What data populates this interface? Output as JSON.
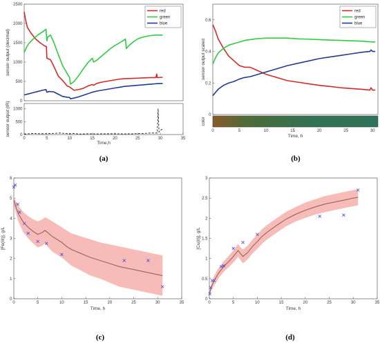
{
  "chart_data": [
    {
      "id": "a",
      "panel_label": "(a)",
      "type": "line",
      "ylabel": "sensor output (decimal)",
      "xlabel": "Time,h",
      "xlim": [
        0,
        35
      ],
      "ylim": [
        0,
        2500
      ],
      "xticks": [
        0,
        5,
        10,
        15,
        20,
        25,
        30,
        35
      ],
      "yticks": [
        0,
        500,
        1000,
        1500,
        2000,
        2500
      ],
      "grid": false,
      "legend_position": "top-right",
      "series": [
        {
          "name": "red",
          "color": "#d62728",
          "x": [
            0,
            0.3,
            0.7,
            1.5,
            2.5,
            3.5,
            4.5,
            4.9,
            5.0,
            5.8,
            6.5,
            7.5,
            8.5,
            9.5,
            10.0,
            10.3,
            11,
            12,
            13,
            14,
            15,
            15.3,
            16,
            17,
            18,
            19,
            20,
            21,
            22,
            23,
            24,
            25,
            26,
            27,
            28,
            29,
            29.2,
            29.3,
            29.6,
            30,
            30.5
          ],
          "y": [
            2300,
            2100,
            1900,
            1750,
            1600,
            1500,
            1420,
            1400,
            1100,
            1060,
            900,
            640,
            520,
            380,
            360,
            330,
            270,
            290,
            320,
            380,
            420,
            400,
            450,
            480,
            500,
            520,
            540,
            560,
            570,
            575,
            580,
            585,
            590,
            595,
            600,
            600,
            690,
            600,
            600,
            605,
            605
          ]
        },
        {
          "name": "green",
          "color": "#2ecc40",
          "x": [
            0,
            0.5,
            1,
            2,
            3,
            4,
            4.8,
            5.0,
            5.2,
            5.8,
            6.5,
            7.5,
            8.5,
            9.5,
            10.0,
            10.2,
            11,
            12,
            13,
            14,
            15,
            15.3,
            16,
            17,
            18,
            19,
            20,
            21,
            22,
            22.3,
            22.5,
            23,
            24,
            25,
            26,
            27,
            28,
            29,
            30,
            30.5
          ],
          "y": [
            1250,
            1380,
            1480,
            1600,
            1700,
            1780,
            1850,
            1550,
            1650,
            1700,
            1520,
            1200,
            900,
            700,
            600,
            430,
            500,
            650,
            820,
            980,
            1100,
            1000,
            1050,
            1150,
            1250,
            1350,
            1430,
            1500,
            1570,
            1600,
            1350,
            1420,
            1520,
            1600,
            1640,
            1670,
            1690,
            1700,
            1700,
            1700
          ]
        },
        {
          "name": "blue",
          "color": "#1f3a93",
          "x": [
            0,
            1,
            2,
            3,
            4,
            4.8,
            5.0,
            5.5,
            6.5,
            7.5,
            8.5,
            9.5,
            10.0,
            10.2,
            11,
            12,
            13,
            14,
            15,
            16,
            17,
            18,
            19,
            20,
            21,
            22,
            23,
            24,
            25,
            26,
            27,
            28,
            29,
            30,
            30.5
          ],
          "y": [
            150,
            180,
            210,
            240,
            270,
            290,
            220,
            240,
            230,
            170,
            110,
            90,
            85,
            50,
            70,
            100,
            140,
            180,
            220,
            250,
            270,
            290,
            310,
            330,
            350,
            370,
            380,
            390,
            400,
            410,
            420,
            430,
            440,
            445,
            445
          ]
        }
      ],
      "inset": {
        "ylabel": "sensor output (IR)",
        "ylim": [
          0,
          1200
        ],
        "yticks": [
          0,
          500,
          1000
        ],
        "style": "dashed",
        "color": "#222222",
        "x": [
          0,
          2,
          4,
          6,
          8,
          9,
          10,
          11,
          12,
          14,
          16,
          18,
          20,
          22,
          24,
          26,
          28,
          29.3,
          29.5,
          29.7,
          30,
          30.3,
          30.6
        ],
        "y": [
          20,
          40,
          30,
          40,
          60,
          40,
          30,
          40,
          20,
          30,
          25,
          30,
          30,
          25,
          30,
          40,
          60,
          60,
          1000,
          100,
          150,
          200,
          220
        ]
      }
    },
    {
      "id": "b",
      "panel_label": "(b)",
      "type": "line",
      "ylabel": "sensor output scaled",
      "xlabel": "Time, h",
      "xlim": [
        0,
        31
      ],
      "ylim": [
        0,
        0.7
      ],
      "xticks": [
        0,
        5,
        10,
        15,
        20,
        25,
        30
      ],
      "yticks": [
        0,
        0.2,
        0.4,
        0.6
      ],
      "grid": false,
      "legend_position": "top-right",
      "series": [
        {
          "name": "red",
          "color": "#d62728",
          "x": [
            0,
            0.5,
            1,
            2,
            3,
            4,
            5,
            6,
            7,
            8,
            9,
            10,
            12,
            14,
            16,
            18,
            20,
            22,
            24,
            26,
            28,
            29.5,
            29.7,
            30,
            30.5
          ],
          "y": [
            0.57,
            0.53,
            0.48,
            0.42,
            0.37,
            0.34,
            0.31,
            0.3,
            0.3,
            0.285,
            0.27,
            0.255,
            0.235,
            0.215,
            0.205,
            0.195,
            0.185,
            0.178,
            0.17,
            0.165,
            0.16,
            0.155,
            0.17,
            0.155,
            0.155
          ]
        },
        {
          "name": "green",
          "color": "#2ecc40",
          "x": [
            0,
            0.5,
            1,
            2,
            3,
            4,
            5,
            6,
            8,
            10,
            12,
            14,
            16,
            18,
            20,
            22,
            24,
            26,
            28,
            30,
            30.5
          ],
          "y": [
            0.32,
            0.36,
            0.39,
            0.42,
            0.44,
            0.45,
            0.46,
            0.47,
            0.48,
            0.485,
            0.485,
            0.485,
            0.48,
            0.478,
            0.475,
            0.472,
            0.47,
            0.468,
            0.465,
            0.46,
            0.46
          ]
        },
        {
          "name": "blue",
          "color": "#1f3a93",
          "x": [
            0,
            0.5,
            1,
            2,
            3,
            4,
            5,
            6,
            7,
            8,
            10,
            12,
            14,
            16,
            18,
            20,
            22,
            24,
            26,
            28,
            29.5,
            29.7,
            30,
            30.5
          ],
          "y": [
            0.12,
            0.14,
            0.16,
            0.185,
            0.2,
            0.21,
            0.225,
            0.235,
            0.24,
            0.25,
            0.27,
            0.29,
            0.31,
            0.325,
            0.34,
            0.355,
            0.365,
            0.375,
            0.385,
            0.395,
            0.4,
            0.41,
            0.4,
            0.4
          ]
        }
      ],
      "color_strip": {
        "label": "color",
        "stops": [
          "#8a5a2b",
          "#4f6b36",
          "#3f6f45",
          "#2f7355",
          "#2e7358",
          "#2d7359"
        ]
      }
    },
    {
      "id": "c",
      "panel_label": "(c)",
      "type": "line",
      "ylabel": "[Fe(III)], g/L",
      "xlabel": "Time, h",
      "xlim": [
        0,
        35
      ],
      "ylim": [
        0,
        6
      ],
      "xticks": [
        0,
        5,
        10,
        15,
        20,
        25,
        30,
        35
      ],
      "yticks": [
        0,
        1,
        2,
        3,
        4,
        5,
        6
      ],
      "grid": false,
      "line": {
        "color": "#8b5a5a",
        "x": [
          0,
          0.5,
          1,
          1.5,
          2,
          3,
          4,
          5,
          6,
          6.5,
          7,
          8,
          9,
          10,
          11,
          12,
          14,
          16,
          18,
          20,
          22,
          24,
          26,
          28,
          30,
          31
        ],
        "y": [
          4.9,
          4.5,
          4.2,
          4.0,
          3.8,
          3.55,
          3.35,
          3.2,
          3.3,
          3.4,
          3.3,
          3.1,
          2.95,
          2.8,
          2.6,
          2.45,
          2.25,
          2.05,
          1.9,
          1.75,
          1.6,
          1.5,
          1.4,
          1.3,
          1.2,
          1.15
        ]
      },
      "band": {
        "color": "#f4a6a0",
        "upper": [
          5.1,
          4.8,
          4.6,
          4.45,
          4.3,
          4.1,
          3.95,
          3.85,
          3.95,
          4.05,
          4.0,
          3.85,
          3.7,
          3.55,
          3.4,
          3.25,
          3.1,
          2.95,
          2.8,
          2.7,
          2.6,
          2.5,
          2.4,
          2.3,
          2.2,
          2.15
        ],
        "lower": [
          4.7,
          4.2,
          3.8,
          3.55,
          3.3,
          3.0,
          2.75,
          2.55,
          2.65,
          2.75,
          2.6,
          2.35,
          2.2,
          2.05,
          1.85,
          1.65,
          1.4,
          1.15,
          1.0,
          0.8,
          0.6,
          0.5,
          0.4,
          0.3,
          0.2,
          0.15
        ]
      },
      "markers": {
        "color": "#4a4ae0",
        "x": [
          0,
          0.3,
          0.8,
          1.2,
          2.2,
          3,
          5,
          6.8,
          10,
          23,
          28,
          31
        ],
        "y": [
          5.55,
          5.65,
          4.7,
          4.3,
          3.75,
          3.25,
          2.85,
          2.75,
          2.2,
          1.9,
          1.9,
          0.6
        ]
      }
    },
    {
      "id": "d",
      "panel_label": "(d)",
      "type": "line",
      "ylabel": "[Cu(II)], g/L",
      "xlabel": "Time, h",
      "xlim": [
        0,
        35
      ],
      "ylim": [
        0,
        3
      ],
      "xticks": [
        0,
        5,
        10,
        15,
        20,
        25,
        30,
        35
      ],
      "yticks": [
        0,
        0.5,
        1,
        1.5,
        2,
        2.5,
        3
      ],
      "grid": false,
      "line": {
        "color": "#8b5a5a",
        "x": [
          0,
          0.3,
          0.6,
          1,
          1.5,
          2,
          3,
          4,
          5,
          6,
          6.5,
          7,
          8,
          9,
          10,
          11,
          12,
          14,
          16,
          18,
          20,
          22,
          24,
          26,
          28,
          30,
          31
        ],
        "y": [
          0.1,
          0.25,
          0.35,
          0.45,
          0.55,
          0.65,
          0.8,
          0.92,
          1.05,
          1.2,
          1.12,
          1.05,
          1.15,
          1.3,
          1.42,
          1.55,
          1.65,
          1.82,
          1.98,
          2.1,
          2.2,
          2.28,
          2.35,
          2.4,
          2.45,
          2.5,
          2.52
        ]
      },
      "band": {
        "color": "#f4a6a0",
        "upper": [
          0.15,
          0.32,
          0.45,
          0.57,
          0.68,
          0.78,
          0.93,
          1.06,
          1.2,
          1.36,
          1.28,
          1.22,
          1.32,
          1.47,
          1.6,
          1.73,
          1.83,
          2.0,
          2.16,
          2.28,
          2.39,
          2.47,
          2.55,
          2.6,
          2.65,
          2.7,
          2.72
        ],
        "lower": [
          0.05,
          0.18,
          0.25,
          0.33,
          0.42,
          0.52,
          0.67,
          0.78,
          0.9,
          1.04,
          0.96,
          0.88,
          0.98,
          1.13,
          1.24,
          1.37,
          1.47,
          1.64,
          1.8,
          1.92,
          2.01,
          2.09,
          2.15,
          2.2,
          2.25,
          2.3,
          2.32
        ]
      },
      "markers": {
        "color": "#4a4ae0",
        "x": [
          0.1,
          0.3,
          0.6,
          1,
          2.5,
          3,
          5,
          7,
          10,
          23,
          28,
          31
        ],
        "y": [
          0.12,
          0.28,
          0.45,
          0.45,
          0.8,
          0.82,
          1.25,
          1.4,
          1.6,
          2.05,
          2.08,
          2.7
        ]
      }
    }
  ]
}
